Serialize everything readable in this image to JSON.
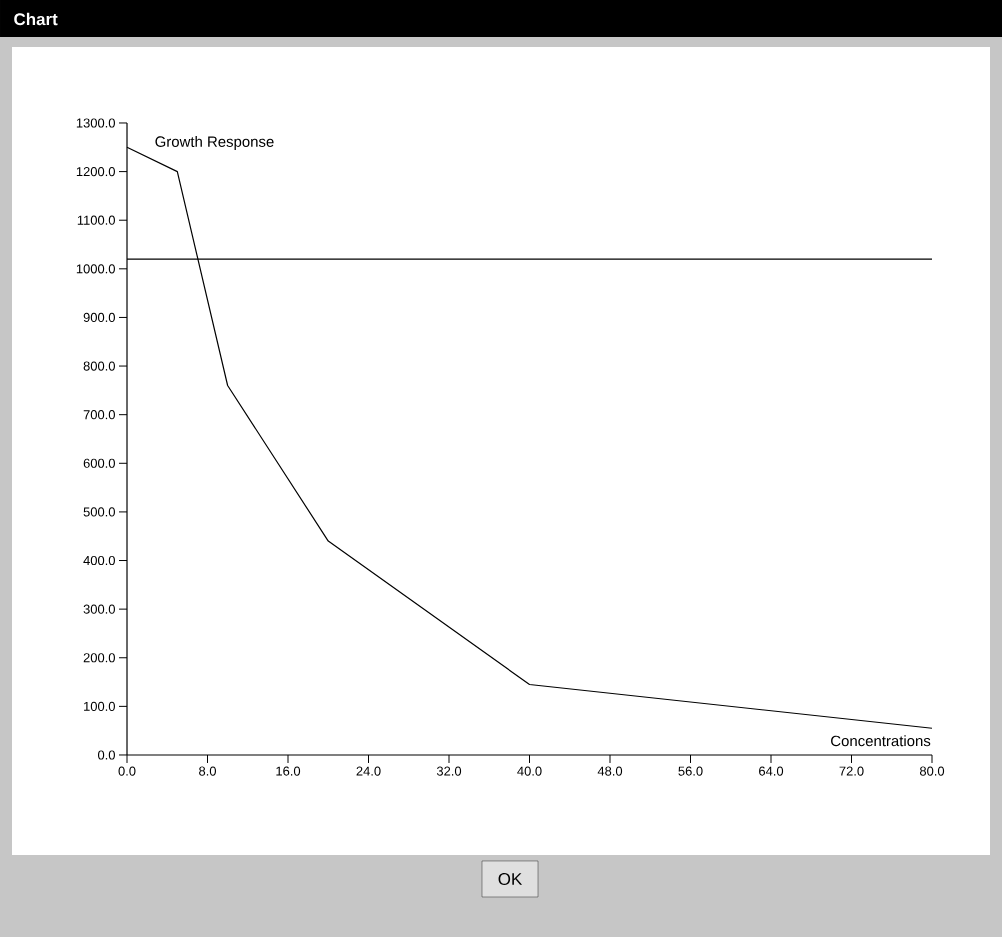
{
  "chart_data": {
    "type": "line",
    "title": "Chart",
    "xlabel": "Concentrations",
    "ylabel": "Growth Response",
    "x": [
      0,
      5,
      10,
      20,
      40,
      80
    ],
    "series": [
      {
        "color": "#000000",
        "values": [
          1250,
          1200,
          760,
          440,
          145,
          55
        ]
      }
    ],
    "xlim": [
      0,
      80
    ],
    "ylim": [
      0,
      1300
    ],
    "xticks": [
      {
        "value": 0,
        "label": "0.0"
      },
      {
        "value": 8,
        "label": "8.0"
      },
      {
        "value": 16,
        "label": "16.0"
      },
      {
        "value": 24,
        "label": "24.0"
      },
      {
        "value": 32,
        "label": "32.0"
      },
      {
        "value": 40,
        "label": "40.0"
      },
      {
        "value": 48,
        "label": "48.0"
      },
      {
        "value": 56,
        "label": "56.0"
      },
      {
        "value": 64,
        "label": "64.0"
      },
      {
        "value": 72,
        "label": "72.0"
      },
      {
        "value": 80,
        "label": "80.0"
      }
    ],
    "yticks": [
      {
        "value": 0,
        "label": "0.0"
      },
      {
        "value": 100,
        "label": "100.0"
      },
      {
        "value": 200,
        "label": "200.0"
      },
      {
        "value": 300,
        "label": "300.0"
      },
      {
        "value": 400,
        "label": "400.0"
      },
      {
        "value": 500,
        "label": "500.0"
      },
      {
        "value": 600,
        "label": "600.0"
      },
      {
        "value": 700,
        "label": "700.0"
      },
      {
        "value": 800,
        "label": "800.0"
      },
      {
        "value": 900,
        "label": "900.0"
      },
      {
        "value": 1000,
        "label": "1000.0"
      },
      {
        "value": 1100,
        "label": "1100.0"
      },
      {
        "value": 1200,
        "label": "1200.0"
      },
      {
        "value": 1300,
        "label": "1300.0"
      }
    ],
    "ref_lines": [
      {
        "axis": "y",
        "value": 1020,
        "color": "#000000"
      }
    ],
    "annotations": [
      "OK"
    ]
  }
}
